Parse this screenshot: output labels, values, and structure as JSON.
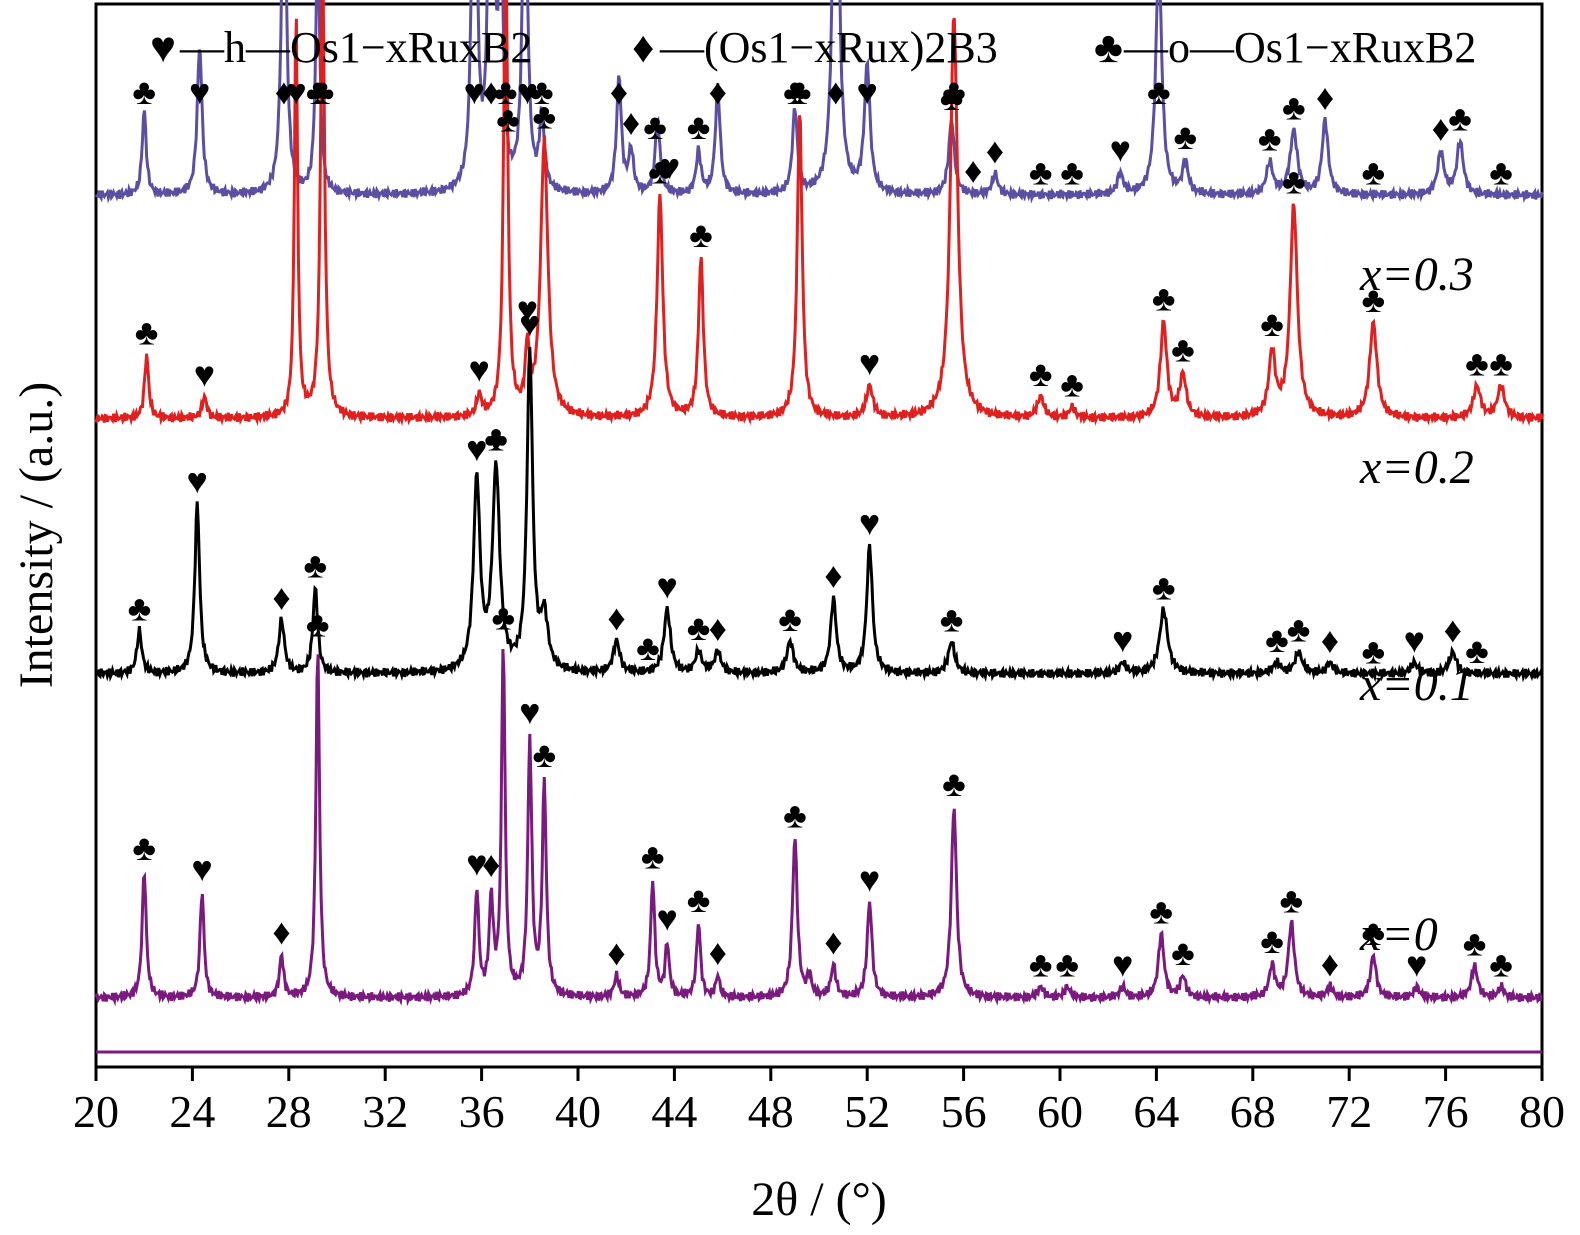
{
  "chart_data": {
    "type": "line",
    "title": "",
    "xlabel": "2θ / (°)",
    "ylabel": "Intensity / (a.u.)",
    "xlim": [
      20,
      80
    ],
    "xticks": [
      "20",
      "24",
      "28",
      "32",
      "36",
      "40",
      "44",
      "48",
      "52",
      "56",
      "60",
      "64",
      "68",
      "72",
      "76",
      "80"
    ],
    "legend": {
      "placement": "top",
      "items": [
        {
          "symbol": "♥",
          "phase": "h",
          "text": "—h—Os1−xRuxB2"
        },
        {
          "symbol": "♦",
          "phase": "d",
          "text": "—(Os1−xRux)2B3"
        },
        {
          "symbol": "♣",
          "phase": "o",
          "text": "—o—Os1−xRuxB2"
        }
      ]
    },
    "series": [
      {
        "name": "x=0.3",
        "color": "#5b4fa3",
        "baseline": 0.18,
        "peaks": [
          [
            22.0,
            0.08,
            0.1
          ],
          [
            24.3,
            0.14,
            0.12
          ],
          [
            27.8,
            0.33,
            0.12
          ],
          [
            29.2,
            0.24,
            0.1
          ],
          [
            35.7,
            0.52,
            0.1
          ],
          [
            36.4,
            0.62,
            0.1
          ],
          [
            36.8,
            0.25,
            0.1
          ],
          [
            37.8,
            0.34,
            0.12
          ],
          [
            38.5,
            0.07,
            0.12
          ],
          [
            41.7,
            0.11,
            0.12
          ],
          [
            42.2,
            0.04,
            0.12
          ],
          [
            43.3,
            0.07,
            0.12
          ],
          [
            45.0,
            0.04,
            0.12
          ],
          [
            45.8,
            0.1,
            0.12
          ],
          [
            49.0,
            0.08,
            0.12
          ],
          [
            50.7,
            0.44,
            0.14
          ],
          [
            52.0,
            0.12,
            0.14
          ],
          [
            55.5,
            0.07,
            0.14
          ],
          [
            57.3,
            0.02,
            0.14
          ],
          [
            62.5,
            0.02,
            0.14
          ],
          [
            64.1,
            0.22,
            0.15
          ],
          [
            65.2,
            0.03,
            0.14
          ],
          [
            68.7,
            0.03,
            0.16
          ],
          [
            69.7,
            0.06,
            0.18
          ],
          [
            71.0,
            0.07,
            0.15
          ],
          [
            75.8,
            0.04,
            0.16
          ],
          [
            76.6,
            0.05,
            0.16
          ]
        ],
        "markers": [
          [
            22.0,
            "♣"
          ],
          [
            24.3,
            "♥"
          ],
          [
            27.8,
            "♦"
          ],
          [
            29.2,
            "♣"
          ],
          [
            35.7,
            "♥"
          ],
          [
            36.4,
            "♦"
          ],
          [
            37.1,
            "♣"
          ],
          [
            37.9,
            "♥"
          ],
          [
            38.5,
            "♣"
          ],
          [
            41.7,
            "♦"
          ],
          [
            42.2,
            "♦"
          ],
          [
            43.2,
            "♣"
          ],
          [
            43.8,
            "♥"
          ],
          [
            45.0,
            "♣"
          ],
          [
            45.8,
            "♦"
          ],
          [
            49.0,
            "♣"
          ],
          [
            50.7,
            "♦"
          ],
          [
            52.0,
            "♥"
          ],
          [
            55.5,
            "♣"
          ],
          [
            56.4,
            "♦"
          ],
          [
            57.3,
            "♦"
          ],
          [
            59.2,
            "♣"
          ],
          [
            60.5,
            "♣"
          ],
          [
            62.5,
            "♥"
          ],
          [
            64.1,
            "♣"
          ],
          [
            65.2,
            "♣"
          ],
          [
            68.7,
            "♣"
          ],
          [
            69.7,
            "♣"
          ],
          [
            71.0,
            "♦"
          ],
          [
            73.0,
            "♣"
          ],
          [
            75.8,
            "♦"
          ],
          [
            76.6,
            "♣"
          ],
          [
            78.3,
            "♣"
          ]
        ]
      },
      {
        "name": "x=0.2",
        "color": "#e0201f",
        "baseline": 0.39,
        "peaks": [
          [
            22.1,
            0.06,
            0.1
          ],
          [
            24.5,
            0.02,
            0.12
          ],
          [
            28.3,
            0.38,
            0.08
          ],
          [
            29.4,
            0.43,
            0.1
          ],
          [
            35.9,
            0.02,
            0.12
          ],
          [
            37.0,
            0.45,
            0.1
          ],
          [
            37.9,
            0.06,
            0.1
          ],
          [
            38.6,
            0.26,
            0.18
          ],
          [
            43.4,
            0.21,
            0.14
          ],
          [
            45.1,
            0.15,
            0.12
          ],
          [
            49.2,
            0.29,
            0.12
          ],
          [
            52.1,
            0.03,
            0.16
          ],
          [
            55.6,
            0.38,
            0.18
          ],
          [
            59.2,
            0.02,
            0.16
          ],
          [
            60.5,
            0.01,
            0.14
          ],
          [
            64.3,
            0.09,
            0.16
          ],
          [
            65.1,
            0.04,
            0.16
          ],
          [
            68.8,
            0.06,
            0.16
          ],
          [
            69.7,
            0.2,
            0.18
          ],
          [
            73.0,
            0.09,
            0.18
          ],
          [
            77.3,
            0.03,
            0.18
          ],
          [
            78.3,
            0.03,
            0.18
          ]
        ],
        "markers": [
          [
            22.1,
            "♣"
          ],
          [
            24.5,
            "♥"
          ],
          [
            28.3,
            "♥"
          ],
          [
            29.4,
            "♣"
          ],
          [
            35.9,
            "♥"
          ],
          [
            37.0,
            "♣"
          ],
          [
            37.9,
            "♥"
          ],
          [
            38.6,
            "♣"
          ],
          [
            43.4,
            "♣"
          ],
          [
            45.1,
            "♣"
          ],
          [
            49.2,
            "♣"
          ],
          [
            52.1,
            "♥"
          ],
          [
            55.6,
            "♣"
          ],
          [
            59.2,
            "♣"
          ],
          [
            60.5,
            "♣"
          ],
          [
            64.3,
            "♣"
          ],
          [
            65.1,
            "♣"
          ],
          [
            68.8,
            "♣"
          ],
          [
            69.7,
            "♣"
          ],
          [
            73.0,
            "♣"
          ],
          [
            77.3,
            "♣"
          ],
          [
            78.3,
            "♣"
          ]
        ]
      },
      {
        "name": "x=0.1",
        "color": "#000000",
        "baseline": 0.63,
        "peaks": [
          [
            21.8,
            0.04,
            0.12
          ],
          [
            24.2,
            0.16,
            0.12
          ],
          [
            27.7,
            0.05,
            0.14
          ],
          [
            29.1,
            0.08,
            0.12
          ],
          [
            35.8,
            0.18,
            0.16
          ],
          [
            36.6,
            0.19,
            0.18
          ],
          [
            38.0,
            0.3,
            0.14
          ],
          [
            38.6,
            0.05,
            0.18
          ],
          [
            41.6,
            0.03,
            0.16
          ],
          [
            43.7,
            0.06,
            0.16
          ],
          [
            45.0,
            0.02,
            0.16
          ],
          [
            45.8,
            0.02,
            0.16
          ],
          [
            48.8,
            0.03,
            0.16
          ],
          [
            50.6,
            0.07,
            0.14
          ],
          [
            52.1,
            0.12,
            0.14
          ],
          [
            55.5,
            0.03,
            0.16
          ],
          [
            62.6,
            0.01,
            0.16
          ],
          [
            64.3,
            0.06,
            0.2
          ],
          [
            69.0,
            0.01,
            0.18
          ],
          [
            69.9,
            0.02,
            0.18
          ],
          [
            71.2,
            0.01,
            0.16
          ],
          [
            74.7,
            0.01,
            0.16
          ],
          [
            76.3,
            0.02,
            0.18
          ]
        ],
        "markers": [
          [
            21.8,
            "♣"
          ],
          [
            24.2,
            "♥"
          ],
          [
            27.7,
            "♦"
          ],
          [
            29.1,
            "♣"
          ],
          [
            35.8,
            "♥"
          ],
          [
            36.6,
            "♣"
          ],
          [
            36.6,
            "♦"
          ],
          [
            38.0,
            "♥"
          ],
          [
            41.6,
            "♦"
          ],
          [
            42.9,
            "♣"
          ],
          [
            43.7,
            "♥"
          ],
          [
            45.0,
            "♣"
          ],
          [
            45.8,
            "♦"
          ],
          [
            48.8,
            "♣"
          ],
          [
            50.6,
            "♦"
          ],
          [
            52.1,
            "♥"
          ],
          [
            55.5,
            "♣"
          ],
          [
            62.6,
            "♥"
          ],
          [
            64.3,
            "♣"
          ],
          [
            69.0,
            "♣"
          ],
          [
            69.9,
            "♣"
          ],
          [
            71.2,
            "♦"
          ],
          [
            73.0,
            "♣"
          ],
          [
            74.7,
            "♥"
          ],
          [
            76.3,
            "♦"
          ],
          [
            77.3,
            "♣"
          ]
        ]
      },
      {
        "name": "x=0",
        "color": "#7a1a7e",
        "baseline": 0.935,
        "peaks": [
          [
            22.0,
            0.12,
            0.1
          ],
          [
            24.4,
            0.1,
            0.1
          ],
          [
            27.7,
            0.04,
            0.1
          ],
          [
            29.2,
            0.33,
            0.09
          ],
          [
            35.8,
            0.1,
            0.1
          ],
          [
            36.4,
            0.09,
            0.1
          ],
          [
            36.9,
            0.33,
            0.09
          ],
          [
            38.0,
            0.24,
            0.1
          ],
          [
            38.6,
            0.2,
            0.1
          ],
          [
            41.6,
            0.02,
            0.12
          ],
          [
            43.1,
            0.11,
            0.1
          ],
          [
            43.7,
            0.05,
            0.1
          ],
          [
            45.0,
            0.07,
            0.1
          ],
          [
            45.8,
            0.02,
            0.1
          ],
          [
            49.0,
            0.15,
            0.12
          ],
          [
            49.6,
            0.02,
            0.1
          ],
          [
            50.6,
            0.03,
            0.12
          ],
          [
            52.1,
            0.09,
            0.12
          ],
          [
            55.6,
            0.18,
            0.13
          ],
          [
            59.2,
            0.01,
            0.14
          ],
          [
            60.3,
            0.01,
            0.14
          ],
          [
            62.6,
            0.01,
            0.14
          ],
          [
            64.2,
            0.06,
            0.14
          ],
          [
            65.1,
            0.02,
            0.14
          ],
          [
            68.8,
            0.03,
            0.14
          ],
          [
            69.6,
            0.07,
            0.15
          ],
          [
            71.2,
            0.01,
            0.14
          ],
          [
            73.0,
            0.04,
            0.14
          ],
          [
            74.8,
            0.01,
            0.14
          ],
          [
            77.2,
            0.03,
            0.15
          ],
          [
            78.3,
            0.01,
            0.14
          ]
        ],
        "markers": [
          [
            22.0,
            "♣"
          ],
          [
            24.4,
            "♥"
          ],
          [
            27.7,
            "♦"
          ],
          [
            29.2,
            "♣"
          ],
          [
            35.8,
            "♥"
          ],
          [
            36.4,
            "♦"
          ],
          [
            36.9,
            "♣"
          ],
          [
            38.0,
            "♥"
          ],
          [
            38.6,
            "♣"
          ],
          [
            41.6,
            "♦"
          ],
          [
            43.1,
            "♣"
          ],
          [
            43.7,
            "♥"
          ],
          [
            45.0,
            "♣"
          ],
          [
            45.8,
            "♦"
          ],
          [
            49.0,
            "♣"
          ],
          [
            50.6,
            "♦"
          ],
          [
            52.1,
            "♥"
          ],
          [
            55.6,
            "♣"
          ],
          [
            59.2,
            "♣"
          ],
          [
            60.3,
            "♣"
          ],
          [
            62.6,
            "♥"
          ],
          [
            64.2,
            "♣"
          ],
          [
            65.1,
            "♣"
          ],
          [
            68.8,
            "♣"
          ],
          [
            69.6,
            "♣"
          ],
          [
            71.2,
            "♦"
          ],
          [
            73.0,
            "♣"
          ],
          [
            74.8,
            "♥"
          ],
          [
            77.2,
            "♣"
          ],
          [
            78.3,
            "♣"
          ]
        ]
      }
    ]
  }
}
